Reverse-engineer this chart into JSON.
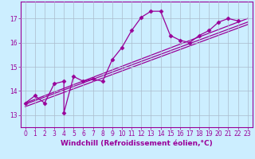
{
  "title": "",
  "xlabel": "Windchill (Refroidissement éolien,°C)",
  "ylabel": "",
  "bg_color": "#cceeff",
  "line_color": "#990099",
  "marker": "D",
  "marker_size": 2.5,
  "xlim": [
    -0.5,
    23.5
  ],
  "ylim": [
    12.5,
    17.7
  ],
  "yticks": [
    13,
    14,
    15,
    16,
    17
  ],
  "xticks": [
    0,
    1,
    2,
    3,
    4,
    5,
    6,
    7,
    8,
    9,
    10,
    11,
    12,
    13,
    14,
    15,
    16,
    17,
    18,
    19,
    20,
    21,
    22,
    23
  ],
  "curve_x": [
    0,
    1,
    2,
    3,
    4,
    4,
    5,
    6,
    7,
    8,
    9,
    10,
    11,
    12,
    13,
    14,
    15,
    16,
    17,
    18,
    19,
    20,
    21,
    22
  ],
  "curve_y": [
    13.5,
    13.8,
    13.5,
    14.3,
    14.4,
    13.1,
    14.6,
    14.4,
    14.5,
    14.4,
    15.3,
    15.8,
    16.5,
    17.05,
    17.3,
    17.3,
    16.3,
    16.1,
    16.0,
    16.3,
    16.5,
    16.85,
    17.0,
    16.9
  ],
  "line1_x": [
    0,
    23
  ],
  "line1_y": [
    13.5,
    17.0
  ],
  "line2_x": [
    0,
    23
  ],
  "line2_y": [
    13.45,
    16.85
  ],
  "line3_x": [
    0,
    23
  ],
  "line3_y": [
    13.35,
    16.75
  ],
  "grid_color": "#aabbcc",
  "tick_fontsize": 5.5,
  "xlabel_fontsize": 6.5,
  "tick_color": "#990099",
  "label_color": "#990099"
}
